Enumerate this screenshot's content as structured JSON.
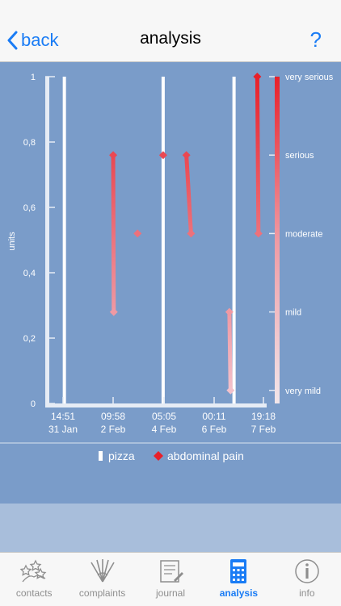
{
  "nav": {
    "back_label": "back",
    "title": "analysis",
    "help_label": "?"
  },
  "chart_data": {
    "type": "bar-line",
    "ylabel": "units",
    "ylim": [
      0,
      1
    ],
    "yticks": [
      "0",
      "0,2",
      "0,4",
      "0,6",
      "0,8",
      "1"
    ],
    "severity_labels": [
      "very mild",
      "mild",
      "moderate",
      "serious",
      "very serious"
    ],
    "xticks": [
      {
        "time": "14:51",
        "date": "31 Jan"
      },
      {
        "time": "09:58",
        "date": "2 Feb"
      },
      {
        "time": "05:05",
        "date": "4 Feb"
      },
      {
        "time": "00:11",
        "date": "6 Feb"
      },
      {
        "time": "19:18",
        "date": "7 Feb"
      }
    ],
    "series": [
      {
        "name": "pizza",
        "color": "#ffffff",
        "bars": [
          {
            "x": "31 Jan 16:00",
            "value": 1
          },
          {
            "x": "4 Feb 05:00",
            "value": 1
          },
          {
            "x": "6 Feb 18:00",
            "value": 1
          }
        ]
      },
      {
        "name": "abdominal pain",
        "color": "#e8202a",
        "segments": [
          [
            {
              "x": "2 Feb 10:00",
              "value": 0.76
            },
            {
              "x": "2 Feb 10:30",
              "value": 0.28
            }
          ],
          [
            {
              "x": "3 Feb 07:00",
              "value": 0.52
            }
          ],
          [
            {
              "x": "4 Feb 05:00",
              "value": 0.76
            }
          ],
          [
            {
              "x": "5 Feb 01:00",
              "value": 0.76
            },
            {
              "x": "5 Feb 05:00",
              "value": 0.52
            }
          ],
          [
            {
              "x": "6 Feb 14:00",
              "value": 0.28
            },
            {
              "x": "6 Feb 15:00",
              "value": 0.04
            }
          ],
          [
            {
              "x": "7 Feb 14:00",
              "value": 1
            },
            {
              "x": "7 Feb 15:00",
              "value": 0.52
            }
          ]
        ]
      }
    ],
    "legend": [
      "pizza",
      "abdominal pain"
    ]
  },
  "tabs": [
    {
      "label": "contacts",
      "icon": "contacts-icon",
      "active": false
    },
    {
      "label": "complaints",
      "icon": "complaints-icon",
      "active": false
    },
    {
      "label": "journal",
      "icon": "journal-icon",
      "active": false
    },
    {
      "label": "analysis",
      "icon": "analysis-icon",
      "active": true
    },
    {
      "label": "info",
      "icon": "info-icon",
      "active": false
    }
  ],
  "colors": {
    "accent": "#1a7cf5",
    "chart_bg": "#7a9cc9",
    "pain": "#e8202a"
  }
}
